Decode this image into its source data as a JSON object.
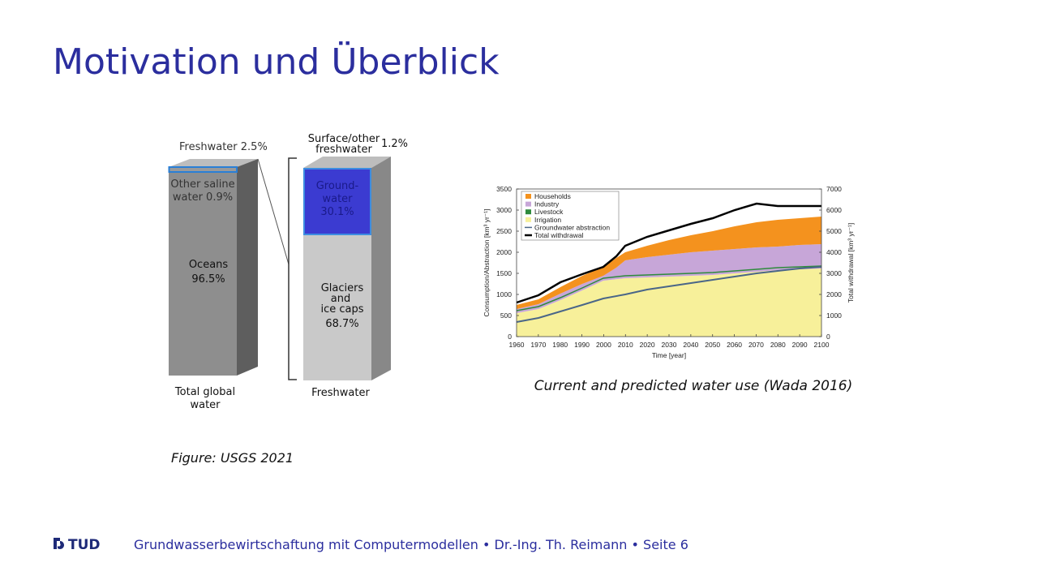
{
  "title": "Motivation und Überblick",
  "left_figure": {
    "freshwater_label": "Freshwater 2.5%",
    "saline_label": [
      "Other saline",
      "water 0.9%"
    ],
    "oceans_label": [
      "Oceans",
      "96.5%"
    ],
    "total_label": [
      "Total global",
      "water"
    ],
    "surface_label": [
      "Surface/other",
      "freshwater"
    ],
    "surface_value": "1.2%",
    "groundwater_label": [
      "Ground-",
      "water",
      "30.1%"
    ],
    "glaciers_label": [
      "Glaciers",
      "and",
      "ice caps",
      "68.7%"
    ],
    "freshwater_bar_label": "Freshwater",
    "caption": "Figure: USGS 2021"
  },
  "right_figure": {
    "y_ticks": [
      "0",
      "500",
      "1000",
      "1500",
      "2000",
      "2500",
      "3000",
      "3500"
    ],
    "y2_ticks": [
      "0",
      "1000",
      "2000",
      "3000",
      "4000",
      "5000",
      "6000",
      "7000"
    ],
    "x_ticks": [
      "1960",
      "1970",
      "1980",
      "1990",
      "2000",
      "2010",
      "2020",
      "2030",
      "2040",
      "2050",
      "2060",
      "2070",
      "2080",
      "2090",
      "2100"
    ],
    "y_label": "Consumption/Abstraction [km³ yr⁻¹]",
    "y2_label": "Total withdrawal [km³ yr⁻¹]",
    "x_label": "Time [year]",
    "legend": [
      "Households",
      "Industry",
      "Livestock",
      "Irrigation",
      "Groundwater abstraction",
      "Total withdrawal"
    ],
    "caption": "Current and predicted water use (Wada 2016)"
  },
  "footer": {
    "logo": "TUD",
    "text": "Grundwasserbewirtschaftung mit Computermodellen • Dr.-Ing. Th. Reimann • Seite 6"
  }
}
